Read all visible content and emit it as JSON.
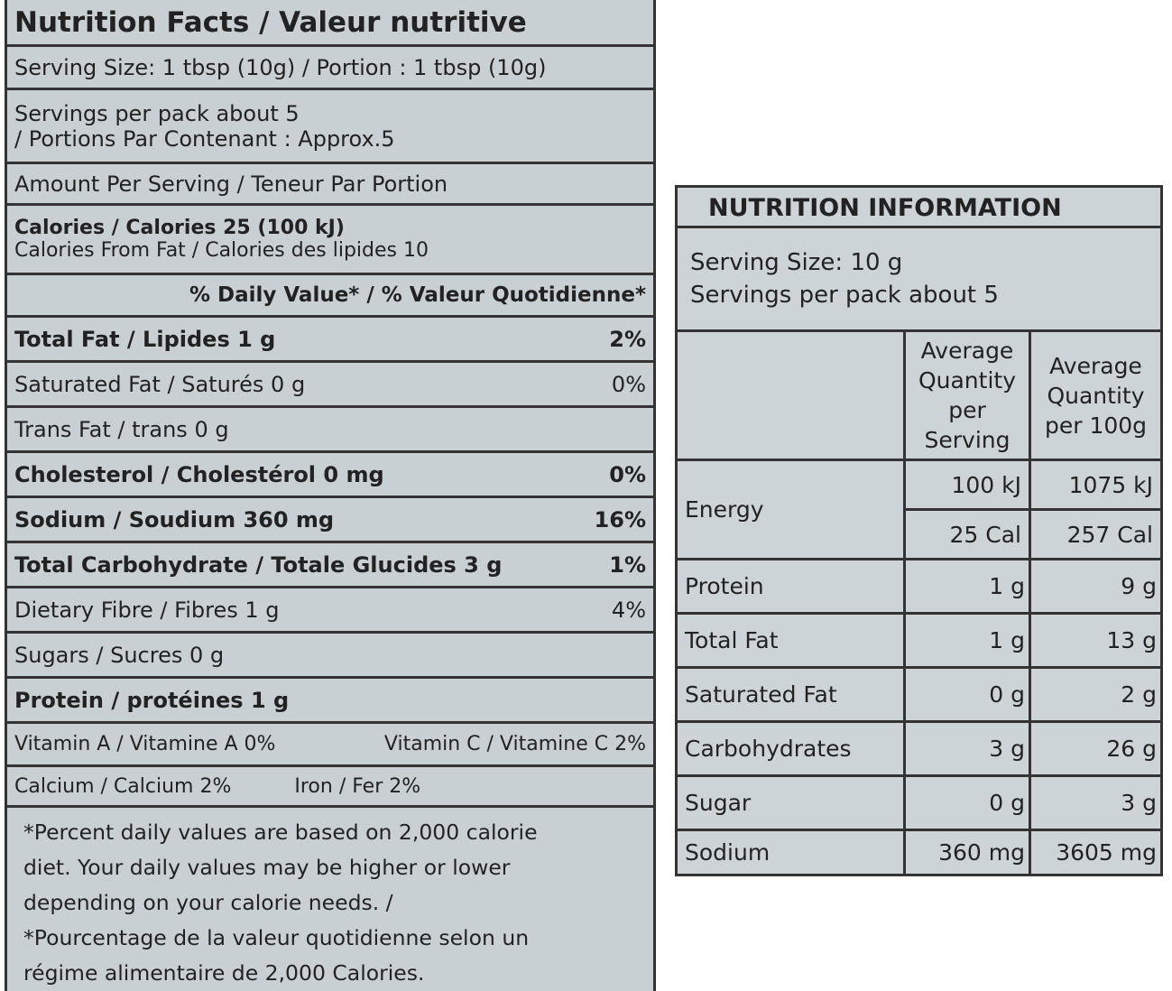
{
  "left_label": {
    "title": "Nutrition Facts / Valeur nutritive",
    "serving_size": "Serving Size: 1 tbsp (10g) / Portion : 1 tbsp (10g)",
    "servings": [
      "Servings per pack about 5",
      "/ Portions Par Contenant : Approx.5"
    ],
    "amount_per_serving": "Amount Per Serving / Teneur Par Portion",
    "calories": "Calories / Calories 25 (100 kJ)",
    "calories_from_fat": "Calories From Fat / Calories des lipides 10",
    "daily_value_header": "% Daily Value* / % Valeur Quotidienne*",
    "nutrients": [
      {
        "name": "Total Fat / Lipides 1 g",
        "dv": "2%",
        "bold": true
      },
      {
        "name": "Saturated Fat / Saturés  0 g",
        "dv": "0%",
        "bold": false
      },
      {
        "name": "Trans Fat / trans 0 g",
        "bold": false
      },
      {
        "name": "Cholesterol / Cholestérol 0 mg",
        "dv": "0%",
        "bold": true
      },
      {
        "name": "Sodium / Soudium 360 mg",
        "dv": "16%",
        "bold": true
      },
      {
        "name": "Total Carbohydrate / Totale Glucides 3 g",
        "dv": "1%",
        "bold": true
      },
      {
        "name": "Dietary Fibre / Fibres 1 g",
        "dv": "4%",
        "bold": false
      },
      {
        "name": "Sugars / Sucres 0 g",
        "bold": false
      },
      {
        "name": "Protein / protéines 1 g",
        "bold": true
      }
    ],
    "vitamins": [
      "Vitamin A / Vitamine A 0%",
      "Vitamin C / Vitamine C 2%"
    ],
    "minerals": [
      "Calcium / Calcium 2%",
      "Iron / Fer 2%"
    ],
    "footnote": [
      "*Percent daily values are based on 2,000 calorie",
      "diet. Your daily values may be higher or lower",
      "depending on your calorie needs. /",
      "*Pourcentage de la valeur quotidienne selon un",
      "régime alimentaire de 2,000 Calories."
    ]
  },
  "right_label": {
    "title": "NUTRITION INFORMATION",
    "serving_size": "Serving Size: 10 g",
    "servings": "Servings per pack about 5",
    "columns": [
      "Average Quantity per Serving",
      "Average Quantity per 100g"
    ],
    "energy": {
      "name": "Energy",
      "per_serving": [
        "100 kJ",
        "25 Cal"
      ],
      "per_100g": [
        "1075 kJ",
        "257 Cal"
      ]
    },
    "rows": [
      {
        "name": "Protein",
        "per_serving": "1 g",
        "per_100g": "9 g"
      },
      {
        "name": "Total Fat",
        "per_serving": "1 g",
        "per_100g": "13 g"
      },
      {
        "name": "Saturated Fat",
        "per_serving": "0 g",
        "per_100g": "2 g"
      },
      {
        "name": "Carbohydrates",
        "per_serving": "3 g",
        "per_100g": "26 g"
      },
      {
        "name": "Sugar",
        "per_serving": "0 g",
        "per_100g": "3 g"
      },
      {
        "name": "Sodium",
        "per_serving": "360 mg",
        "per_100g": "3605 mg"
      }
    ]
  }
}
